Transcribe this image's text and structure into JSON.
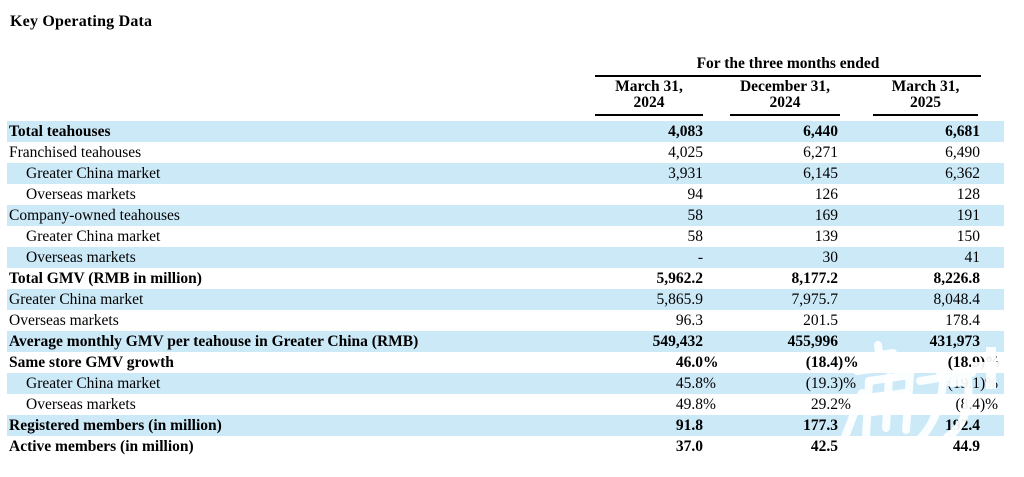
{
  "title": "Key Operating Data",
  "table": {
    "period_header": "For the three months ended",
    "columns": [
      {
        "line1": "March 31,",
        "line2": "2024"
      },
      {
        "line1": "December 31,",
        "line2": "2024"
      },
      {
        "line1": "March 31,",
        "line2": "2025"
      }
    ],
    "rows": [
      {
        "label": "Total teahouses",
        "bold": true,
        "indent": false,
        "values": [
          "4,083",
          "6,440",
          "6,681"
        ]
      },
      {
        "label": "Franchised teahouses",
        "bold": false,
        "indent": false,
        "values": [
          "4,025",
          "6,271",
          "6,490"
        ]
      },
      {
        "label": "Greater China market",
        "bold": false,
        "indent": true,
        "values": [
          "3,931",
          "6,145",
          "6,362"
        ]
      },
      {
        "label": "Overseas markets",
        "bold": false,
        "indent": true,
        "values": [
          "94",
          "126",
          "128"
        ]
      },
      {
        "label": "Company-owned teahouses",
        "bold": false,
        "indent": false,
        "values": [
          "58",
          "169",
          "191"
        ]
      },
      {
        "label": "Greater China market",
        "bold": false,
        "indent": true,
        "values": [
          "58",
          "139",
          "150"
        ]
      },
      {
        "label": "Overseas markets",
        "bold": false,
        "indent": true,
        "values": [
          "-",
          "30",
          "41"
        ]
      },
      {
        "label": "Total GMV (RMB in million)",
        "bold": true,
        "indent": false,
        "values": [
          "5,962.2",
          "8,177.2",
          "8,226.8"
        ]
      },
      {
        "label": "Greater China market",
        "bold": false,
        "indent": false,
        "values": [
          "5,865.9",
          "7,975.7",
          "8,048.4"
        ]
      },
      {
        "label": "Overseas markets",
        "bold": false,
        "indent": false,
        "values": [
          "96.3",
          "201.5",
          "178.4"
        ]
      },
      {
        "label": "Average monthly GMV per teahouse in Greater China (RMB)",
        "bold": true,
        "indent": false,
        "values": [
          "549,432",
          "455,996",
          "431,973"
        ]
      },
      {
        "label": "Same store GMV growth",
        "bold": true,
        "indent": false,
        "values": [
          "46.0%",
          "(18.4)%",
          "(18.9)%"
        ]
      },
      {
        "label": "Greater China market",
        "bold": false,
        "indent": true,
        "values": [
          "45.8%",
          "(19.3)%",
          "(19.1)%"
        ]
      },
      {
        "label": "Overseas markets",
        "bold": false,
        "indent": true,
        "values": [
          "49.8%",
          "29.2%",
          "(8.4)%"
        ]
      },
      {
        "label": "Registered members (in million)",
        "bold": true,
        "indent": false,
        "values": [
          "91.8",
          "177.3",
          "192.4"
        ]
      },
      {
        "label": "Active members (in million)",
        "bold": true,
        "indent": false,
        "values": [
          "37.0",
          "42.5",
          "44.9"
        ]
      }
    ],
    "colors": {
      "band": "#cce9f8",
      "rule": "#000000",
      "text": "#000000"
    }
  },
  "watermark": {
    "text": "南方+",
    "color": "#ffffff"
  }
}
